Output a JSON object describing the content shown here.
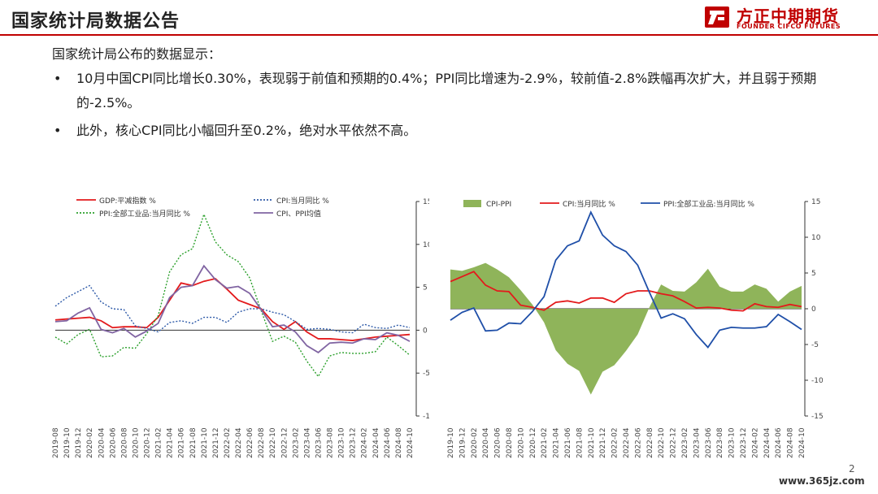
{
  "header": {
    "title": "国家统计局数据公告",
    "logo_cn": "方正中期期货",
    "logo_en": "FOUNDER CIFCO FUTURES",
    "accent_color": "#c00000"
  },
  "body": {
    "intro": "国家统计局公布的数据显示：",
    "bullets": [
      "10月中国CPI同比增长0.30%，表现弱于前值和预期的0.4%；PPI同比增速为-2.9%，较前值-2.8%跌幅再次扩大，并且弱于预期的-2.5%。",
      "此外，核心CPI同比小幅回升至0.2%，绝对水平依然不高。"
    ]
  },
  "chart_data": [
    {
      "type": "line",
      "title": "",
      "x": [
        "2019-08",
        "2019-10",
        "2019-12",
        "2020-02",
        "2020-04",
        "2020-06",
        "2020-08",
        "2020-10",
        "2020-12",
        "2021-02",
        "2021-04",
        "2021-06",
        "2021-08",
        "2021-10",
        "2021-12",
        "2022-02",
        "2022-04",
        "2022-06",
        "2022-08",
        "2022-10",
        "2022-12",
        "2023-02",
        "2023-04",
        "2023-06",
        "2023-08",
        "2023-10",
        "2023-12",
        "2024-02",
        "2024-04",
        "2024-06",
        "2024-08",
        "2024-10"
      ],
      "ylim": [
        -10,
        15
      ],
      "yticks": [
        -10,
        -5,
        0,
        5,
        10,
        15
      ],
      "grid": false,
      "legend": "top",
      "series": [
        {
          "name": "GDP:平减指数 %",
          "style": "solid",
          "color": "#e31a1c",
          "values": [
            1.2,
            1.3,
            1.4,
            1.5,
            1.1,
            0.3,
            0.4,
            0.4,
            0.3,
            1.5,
            3.5,
            5.5,
            5.2,
            5.7,
            6.0,
            4.8,
            3.5,
            3.0,
            2.5,
            1.0,
            0.1,
            1.0,
            -0.2,
            -1.0,
            -1.0,
            -1.1,
            -1.2,
            -1.0,
            -0.8,
            -0.7,
            -0.6,
            -0.5
          ]
        },
        {
          "name": "CPI:当月同比 %",
          "style": "dotted",
          "color": "#2e5aa8",
          "values": [
            2.8,
            3.8,
            4.5,
            5.2,
            3.3,
            2.5,
            2.4,
            0.5,
            0.2,
            -0.2,
            0.9,
            1.1,
            0.8,
            1.5,
            1.5,
            0.9,
            2.1,
            2.5,
            2.5,
            2.1,
            1.8,
            1.0,
            0.1,
            0.2,
            0.1,
            -0.2,
            -0.3,
            0.7,
            0.3,
            0.2,
            0.6,
            0.3
          ]
        },
        {
          "name": "PPI:全部工业品:当月同比 %",
          "style": "dotted",
          "color": "#2ca02c",
          "values": [
            -0.8,
            -1.6,
            -0.5,
            0.1,
            -3.1,
            -3.0,
            -2.0,
            -2.1,
            -0.4,
            1.7,
            6.8,
            8.8,
            9.5,
            13.5,
            10.3,
            8.8,
            8.0,
            6.1,
            2.3,
            -1.3,
            -0.7,
            -1.4,
            -3.6,
            -5.4,
            -3.0,
            -2.6,
            -2.7,
            -2.7,
            -2.5,
            -0.8,
            -1.8,
            -2.9
          ]
        },
        {
          "name": "CPI、PPI均值",
          "style": "solid",
          "color": "#8064a2",
          "values": [
            1.0,
            1.1,
            2.0,
            2.6,
            0.1,
            -0.3,
            0.2,
            -0.8,
            -0.1,
            0.8,
            3.8,
            5.0,
            5.2,
            7.5,
            5.9,
            4.9,
            5.1,
            4.3,
            2.4,
            0.4,
            0.6,
            -0.2,
            -1.8,
            -2.6,
            -1.5,
            -1.4,
            -1.5,
            -1.0,
            -1.1,
            -0.3,
            -0.6,
            -1.3
          ]
        }
      ]
    },
    {
      "type": "area",
      "title": "",
      "x": [
        "2019-10",
        "2019-12",
        "2020-02",
        "2020-04",
        "2020-06",
        "2020-08",
        "2020-10",
        "2020-12",
        "2021-02",
        "2021-04",
        "2021-06",
        "2021-08",
        "2021-10",
        "2021-12",
        "2022-02",
        "2022-04",
        "2022-06",
        "2022-08",
        "2022-10",
        "2022-12",
        "2023-02",
        "2023-04",
        "2023-06",
        "2023-08",
        "2023-10",
        "2023-12",
        "2024-02",
        "2024-04",
        "2024-06",
        "2024-08",
        "2024-10"
      ],
      "ylim": [
        -15,
        15
      ],
      "yticks": [
        -15,
        -10,
        -5,
        0,
        5,
        10,
        15
      ],
      "grid": false,
      "legend": "top",
      "series": [
        {
          "name": "CPI-PPI",
          "style": "area",
          "color": "#8fb45a",
          "values": [
            5.5,
            5.3,
            5.8,
            6.4,
            5.5,
            4.4,
            2.6,
            0.6,
            -1.9,
            -5.8,
            -7.7,
            -8.7,
            -12.0,
            -8.8,
            -7.9,
            -5.9,
            -3.6,
            0.2,
            3.4,
            2.5,
            2.4,
            3.7,
            5.6,
            3.1,
            2.4,
            2.4,
            3.4,
            2.8,
            1.0,
            2.4,
            3.2
          ]
        },
        {
          "name": "CPI:当月同比 %",
          "style": "solid",
          "color": "#e31a1c",
          "values": [
            3.8,
            4.5,
            5.2,
            3.3,
            2.5,
            2.4,
            0.5,
            0.2,
            -0.2,
            0.9,
            1.1,
            0.8,
            1.5,
            1.5,
            0.9,
            2.1,
            2.5,
            2.5,
            2.1,
            1.8,
            1.0,
            0.1,
            0.2,
            0.1,
            -0.2,
            -0.3,
            0.7,
            0.3,
            0.2,
            0.6,
            0.3
          ]
        },
        {
          "name": "PPI:全部工业品:当月同比 %",
          "style": "solid",
          "color": "#1f4fa8",
          "values": [
            -1.6,
            -0.5,
            0.1,
            -3.1,
            -3.0,
            -2.0,
            -2.1,
            -0.4,
            1.7,
            6.8,
            8.8,
            9.5,
            13.5,
            10.3,
            8.8,
            8.0,
            6.1,
            2.3,
            -1.3,
            -0.7,
            -1.4,
            -3.6,
            -5.4,
            -3.0,
            -2.6,
            -2.7,
            -2.7,
            -2.5,
            -0.8,
            -1.8,
            -2.9
          ]
        }
      ]
    }
  ],
  "footer": {
    "page_number": "2",
    "site_mark": "www.365jz.com"
  }
}
